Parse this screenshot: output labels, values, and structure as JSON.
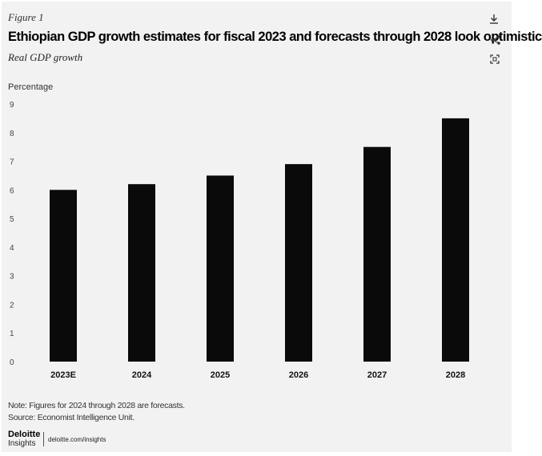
{
  "figure_label": "Figure 1",
  "title": "Ethiopian GDP growth estimates for fiscal 2023 and forecasts through 2028 look optimistic",
  "subtitle": "Real GDP growth",
  "icons": {
    "download": "download-icon",
    "share": "share-icon",
    "expand": "expand-icon"
  },
  "chart_data": {
    "type": "bar",
    "ylabel": "Percentage",
    "xlabel": "",
    "categories": [
      "2023E",
      "2024",
      "2025",
      "2026",
      "2027",
      "2028"
    ],
    "values": [
      6.0,
      6.2,
      6.5,
      6.9,
      7.5,
      8.5
    ],
    "ylim": [
      0,
      9
    ],
    "yticks": [
      0,
      1,
      2,
      3,
      4,
      5,
      6,
      7,
      8,
      9
    ],
    "grid": false,
    "bar_color": "#0a0a0a"
  },
  "note": "Note: Figures for 2024 through 2028 are forecasts.",
  "source": "Source: Economist Intelligence Unit.",
  "brand": {
    "name": "Deloitte",
    "sub": "Insights",
    "site": "deloitte.com/insights"
  }
}
